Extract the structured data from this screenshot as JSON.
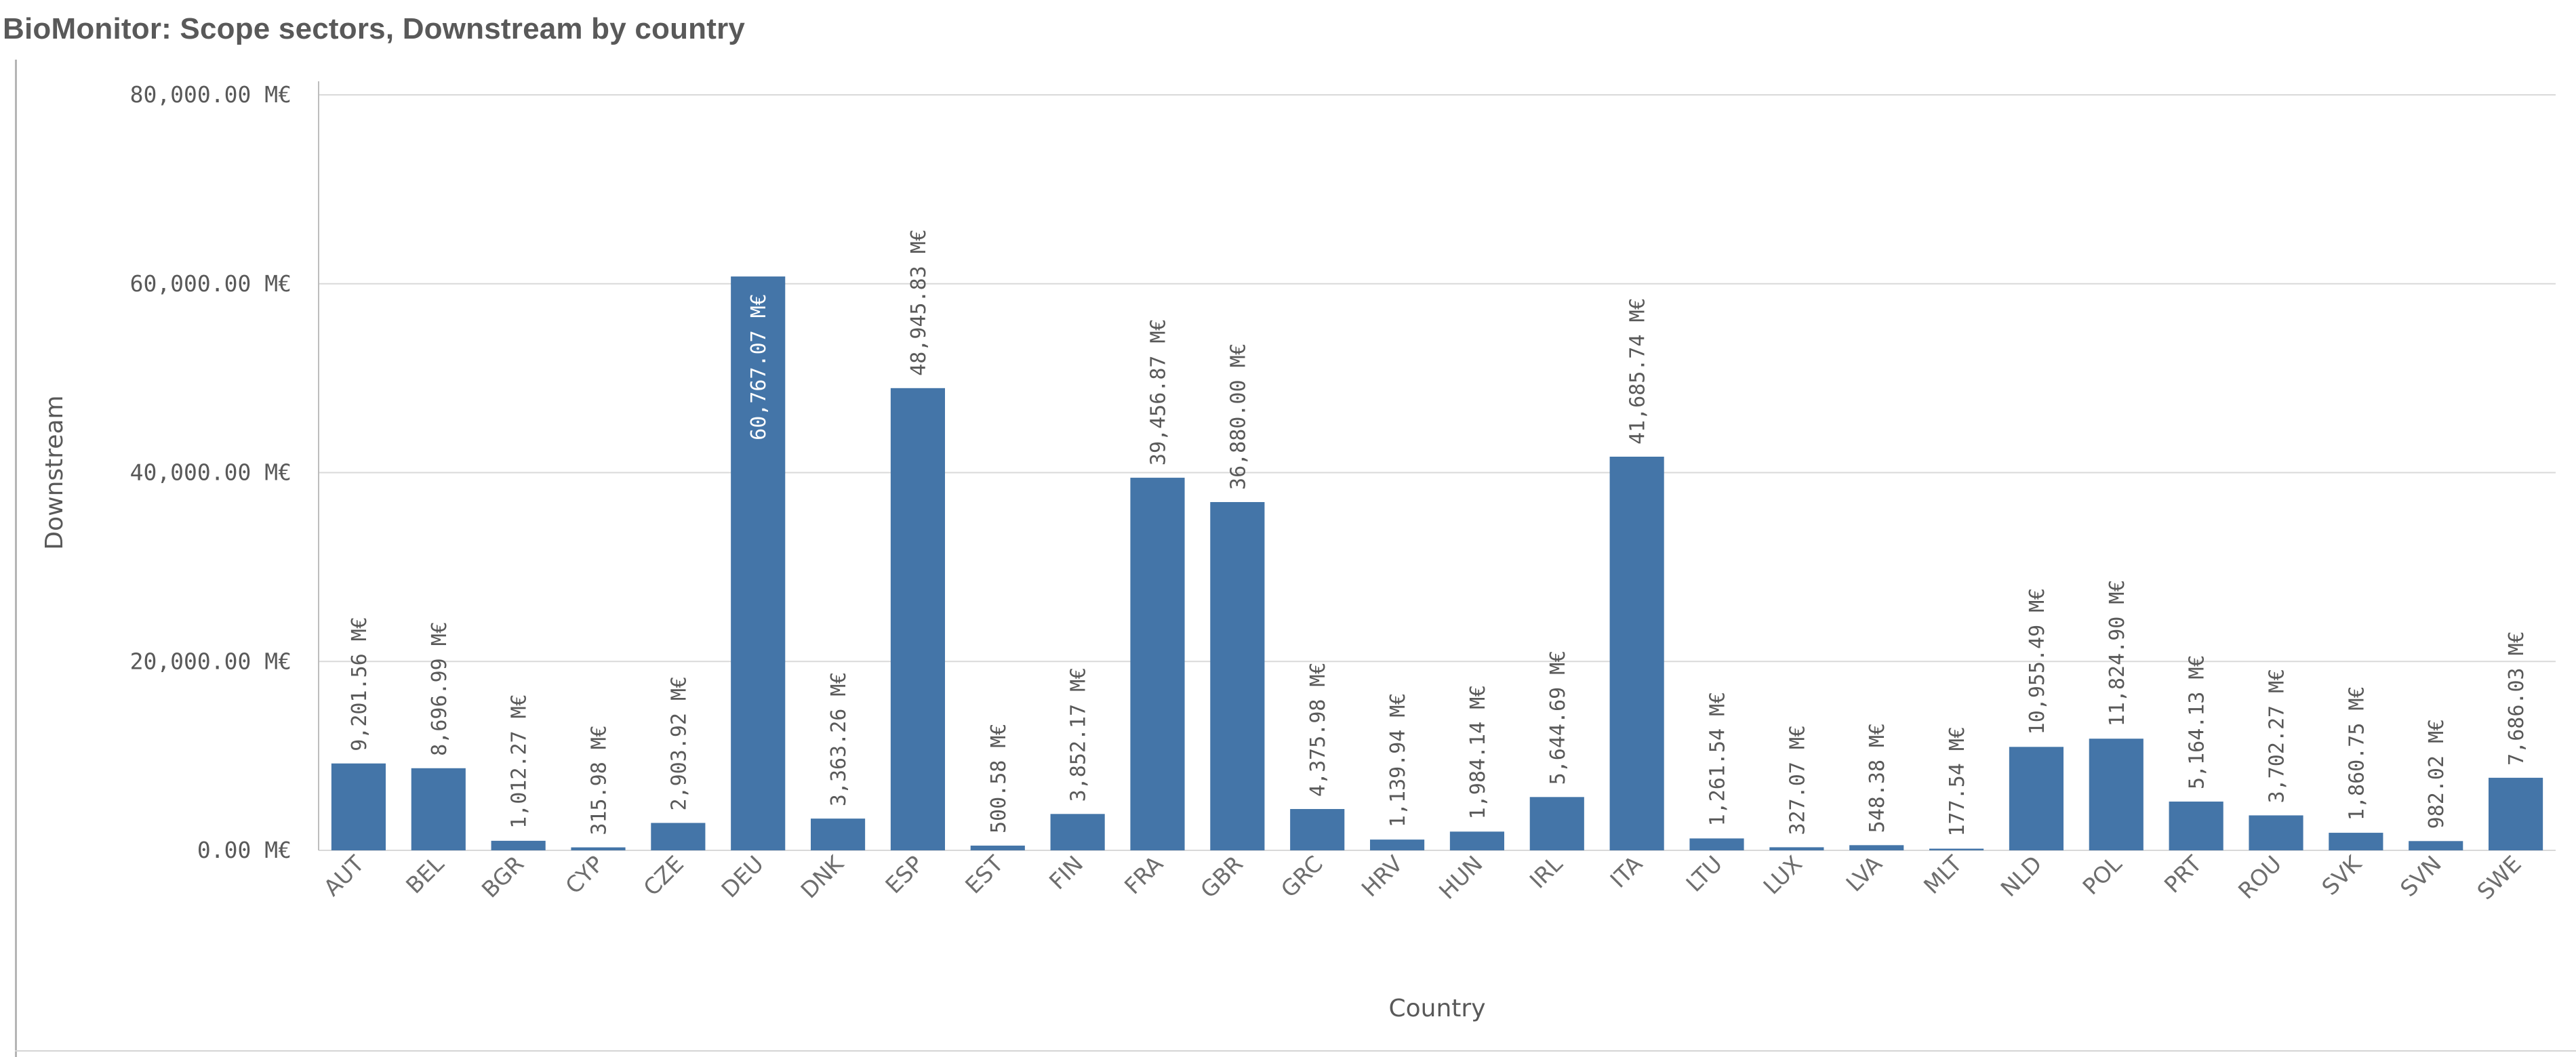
{
  "page": {
    "title": "BioMonitor: Scope sectors, Downstream by country"
  },
  "chart_data": {
    "type": "bar",
    "title": "BioMonitor: Scope sectors, Downstream by country",
    "xlabel": "Country",
    "ylabel": "Downstream",
    "unit": "M€",
    "ylim": [
      0,
      80000
    ],
    "yticks": [
      0,
      20000,
      40000,
      60000,
      80000
    ],
    "ytick_labels": [
      "0.00 M€",
      "20,000.00 M€",
      "40,000.00 M€",
      "60,000.00 M€",
      "80,000.00 M€"
    ],
    "grid": "horizontal",
    "bar_color": "#4475a8",
    "categories": [
      "AUT",
      "BEL",
      "BGR",
      "CYP",
      "CZE",
      "DEU",
      "DNK",
      "ESP",
      "EST",
      "FIN",
      "FRA",
      "GBR",
      "GRC",
      "HRV",
      "HUN",
      "IRL",
      "ITA",
      "LTU",
      "LUX",
      "LVA",
      "MLT",
      "NLD",
      "POL",
      "PRT",
      "ROU",
      "SVK",
      "SVN",
      "SWE"
    ],
    "values": [
      9201.56,
      8696.99,
      1012.27,
      315.98,
      2903.92,
      60767.07,
      3363.26,
      48945.83,
      500.58,
      3852.17,
      39456.87,
      36880.0,
      4375.98,
      1139.94,
      1984.14,
      5644.69,
      41685.74,
      1261.54,
      327.07,
      548.38,
      177.54,
      10955.49,
      11824.9,
      5164.13,
      3702.27,
      1860.75,
      982.02,
      7686.03
    ],
    "labels": [
      "9,201.56 M€",
      "8,696.99 M€",
      "1,012.27 M€",
      "315.98 M€",
      "2,903.92 M€",
      "60,767.07 M€",
      "3,363.26 M€",
      "48,945.83 M€",
      "500.58 M€",
      "3,852.17 M€",
      "39,456.87 M€",
      "36,880.00 M€",
      "4,375.98 M€",
      "1,139.94 M€",
      "1,984.14 M€",
      "5,644.69 M€",
      "41,685.74 M€",
      "1,261.54 M€",
      "327.07 M€",
      "548.38 M€",
      "177.54 M€",
      "10,955.49 M€",
      "11,824.90 M€",
      "5,164.13 M€",
      "3,702.27 M€",
      "1,860.75 M€",
      "982.02 M€",
      "7,686.03 M€"
    ]
  }
}
